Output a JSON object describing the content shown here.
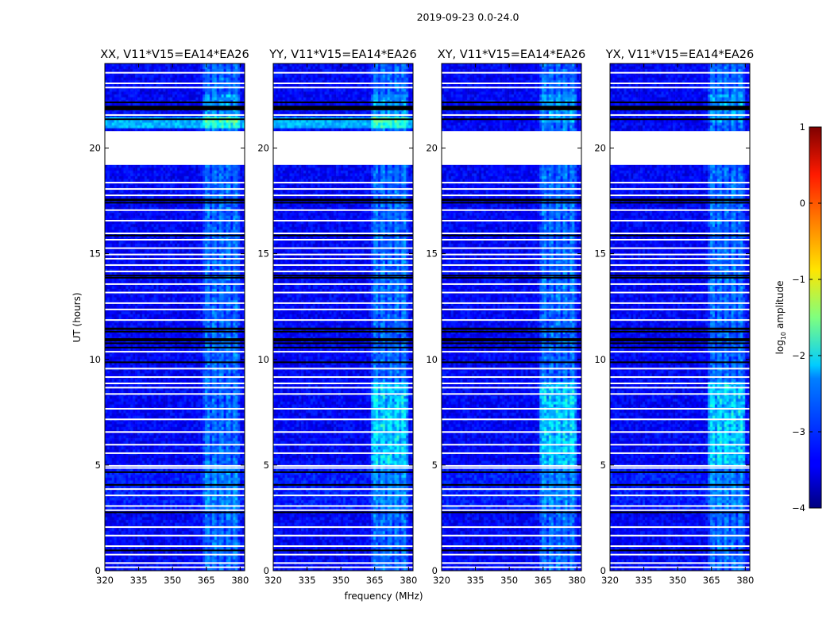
{
  "figure": {
    "title": "2019-09-23 0.0-24.0"
  },
  "chart_data": {
    "type": "heatmap",
    "title": "2019-09-23 0.0-24.0",
    "xlabel": "frequency (MHz)",
    "ylabel": "UT (hours)",
    "colorbar_label": "log10 amplitude",
    "colorbar_label_parts": {
      "prefix": "log",
      "sub": "10",
      "suffix": " amplitude"
    },
    "colormap": "jet",
    "colorbar_range": [
      -4,
      1
    ],
    "colorbar_ticks": [
      -4,
      -3,
      -2,
      -1,
      0,
      1
    ],
    "colorbar_tick_labels": [
      "−4",
      "−3",
      "−2",
      "−1",
      "0",
      "1"
    ],
    "xlim": [
      320,
      382
    ],
    "ylim": [
      0,
      24
    ],
    "x_ticks": [
      320,
      335,
      350,
      365,
      380
    ],
    "x_tick_labels": [
      "320",
      "335",
      "350",
      "365",
      "380"
    ],
    "y_ticks": [
      0,
      5,
      10,
      15,
      20
    ],
    "y_tick_labels": [
      "0",
      "5",
      "10",
      "15",
      "20"
    ],
    "panels": [
      {
        "name": "XX",
        "title": "XX, V11*V15=EA14*EA26"
      },
      {
        "name": "YY",
        "title": "YY, V11*V15=EA14*EA26"
      },
      {
        "name": "XY",
        "title": "XY, V11*V15=EA14*EA26"
      },
      {
        "name": "YX",
        "title": "YX, V11*V15=EA14*EA26"
      }
    ],
    "data_summary": {
      "background_log10_amplitude": -3.4,
      "rfi_band_mhz": [
        363,
        380
      ],
      "rfi_log10_amplitude_range": [
        -2.6,
        -1.9
      ],
      "no_data_time_range_hours": [
        19.2,
        20.8
      ],
      "flagged_zero_time_ranges_hours": [
        [
          17.3,
          17.6
        ],
        [
          10.6,
          11.0
        ],
        [
          11.2,
          11.5
        ],
        [
          21.4,
          22.0
        ]
      ],
      "bright_time_range_hours": [
        21.0,
        21.5
      ]
    }
  }
}
